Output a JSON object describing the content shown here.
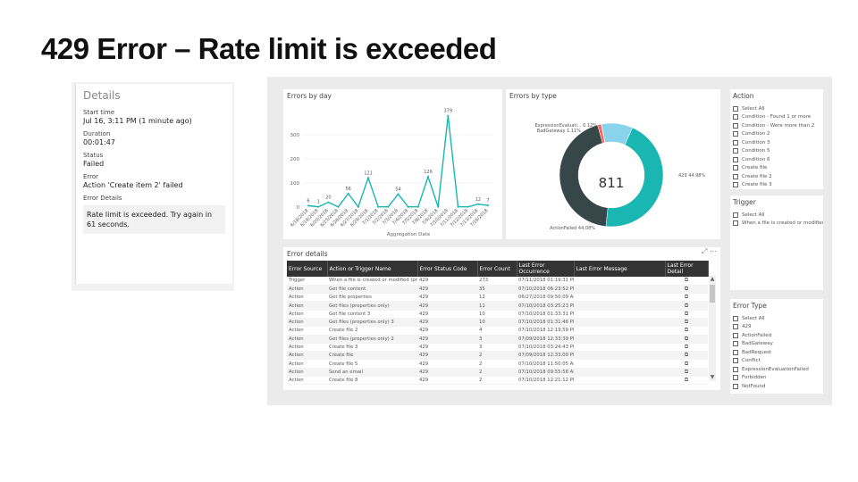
{
  "slide": {
    "title": "429 Error – Rate limit is exceeded"
  },
  "details": {
    "header": "Details",
    "start_label": "Start time",
    "start_value": "Jul 16, 3:11 PM (1 minute ago)",
    "duration_label": "Duration",
    "duration_value": "00:01:47",
    "status_label": "Status",
    "status_value": "Failed",
    "error_label": "Error",
    "error_value": "Action 'Create item 2' failed",
    "error_details_label": "Error Details",
    "error_details_value": "Rate limit is exceeded. Try again in 61 seconds."
  },
  "errors_by_day": {
    "title": "Errors by day",
    "xlabel": "Aggregation Date"
  },
  "errors_by_type": {
    "title": "Errors by type",
    "total": "811"
  },
  "error_details": {
    "title": "Error details",
    "columns": [
      "Error Source",
      "Action or Trigger Name",
      "Error Status Code",
      "Error Count",
      "Last Error Occurrence",
      "Last Error Message",
      "Last Error Detail"
    ],
    "rows": [
      [
        "Trigger",
        "When a file is created or modified (pro...",
        "429",
        "273",
        "07/11/2018 01:19:31 PM"
      ],
      [
        "Action",
        "Get file content",
        "429",
        "35",
        "07/10/2018 06:23:52 PM"
      ],
      [
        "Action",
        "Get file properties",
        "429",
        "12",
        "06/27/2018 09:50:09 AM"
      ],
      [
        "Action",
        "Get files (properties only)",
        "429",
        "11",
        "07/10/2018 03:25:23 PM"
      ],
      [
        "Action",
        "Get file content 3",
        "429",
        "10",
        "07/10/2018 01:33:31 PM"
      ],
      [
        "Action",
        "Get files (properties only) 3",
        "429",
        "10",
        "07/10/2018 01:31:46 PM"
      ],
      [
        "Action",
        "Create file 2",
        "429",
        "4",
        "07/10/2018 12:19:59 PM"
      ],
      [
        "Action",
        "Get files (properties only) 2",
        "429",
        "3",
        "07/09/2018 12:33:39 PM"
      ],
      [
        "Action",
        "Create file 3",
        "429",
        "3",
        "07/10/2018 03:24:43 PM"
      ],
      [
        "Action",
        "Create file",
        "429",
        "2",
        "07/09/2018 12:33:00 PM"
      ],
      [
        "Action",
        "Create file 5",
        "429",
        "2",
        "07/10/2018 11:50:05 AM"
      ],
      [
        "Action",
        "Send an email",
        "429",
        "2",
        "07/10/2018 09:55:58 AM"
      ],
      [
        "Action",
        "Create file 8",
        "429",
        "2",
        "07/10/2018 12:21:12 PM"
      ]
    ]
  },
  "slicers": {
    "action": {
      "title": "Action",
      "items": [
        "Select All",
        "Condition - Found 1 or more",
        "Condition - Were more than 2",
        "Condition 2",
        "Condition 3",
        "Condition 5",
        "Condition 6",
        "Create file",
        "Create file 2",
        "Create file 3"
      ]
    },
    "trigger": {
      "title": "Trigger",
      "items": [
        "Select All",
        "When a file is created or modified"
      ]
    },
    "error_type": {
      "title": "Error Type",
      "items": [
        "Select All",
        "429",
        "ActionFailed",
        "BadGateway",
        "BadRequest",
        "Conflict",
        "ExpressionEvaluationFailed",
        "Forbidden",
        "NotFound"
      ]
    }
  },
  "colors": {
    "teal": "#1ab6b1",
    "dark_slate": "#374649",
    "red": "#fd625e",
    "yellow": "#f2c80f",
    "purple": "#8ad4eb"
  },
  "chart_data": [
    {
      "type": "line",
      "title": "Errors by day",
      "xlabel": "Aggregation Date",
      "ylabel": "",
      "ylim": [
        0,
        400
      ],
      "yticks": [
        "0",
        "100",
        "200",
        "300"
      ],
      "x": [
        "6/18/2018",
        "6/19/2018",
        "6/20/2018",
        "6/25/2018",
        "6/26/2018",
        "6/27/2018",
        "6/29/2018",
        "7/1/2018",
        "7/2/2018",
        "7/3/2018",
        "7/4/2018",
        "7/5/2018",
        "7/8/2018",
        "7/9/2018",
        "7/10/2018",
        "7/11/2018",
        "7/12/2018",
        "7/13/2018",
        "7/16/2018"
      ],
      "values": [
        6,
        1,
        20,
        1,
        56,
        1,
        121,
        1,
        1,
        54,
        1,
        1,
        126,
        1,
        379,
        1,
        1,
        12,
        7
      ],
      "point_labels": [
        "6",
        "1",
        "20",
        "",
        "56",
        "",
        "121",
        "",
        "",
        "54",
        "",
        "",
        "126",
        "",
        "379",
        "",
        "",
        "12",
        "7"
      ]
    },
    {
      "type": "pie",
      "title": "Errors by type",
      "labels": [
        "429",
        "ActionFailed",
        "BadGateway",
        "ExpressionEvaluati...",
        "Other"
      ],
      "values": [
        44.98,
        44.08,
        1.11,
        0.12,
        9.71
      ],
      "slice_labels": [
        "429 44.98%",
        "ActionFailed 44.08%",
        "BadGateway 1.11%",
        "ExpressionEvaluati... 0.12%",
        ""
      ],
      "center_label": "811"
    }
  ]
}
